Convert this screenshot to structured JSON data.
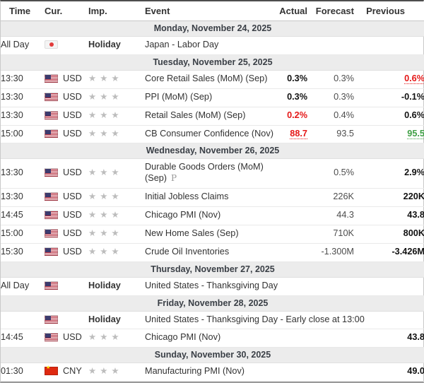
{
  "labels": {
    "preliminary_marker": "P"
  },
  "colors": {
    "negative_red": "#e51717",
    "positive_green": "#3fa045",
    "star_gray": "#bdbdbd",
    "day_header_bg": "#ececec"
  },
  "table": {
    "columns": [
      "Time",
      "Cur.",
      "Imp.",
      "Event",
      "Actual",
      "Forecast",
      "Previous"
    ],
    "sections": [
      {
        "date": "Monday, November 24, 2025",
        "rows": [
          {
            "time": "All Day",
            "flag": "JP",
            "currency": "",
            "holiday": "Holiday",
            "event": "Japan - Labor Day"
          }
        ]
      },
      {
        "date": "Tuesday, November 25, 2025",
        "rows": [
          {
            "time": "13:30",
            "flag": "US",
            "currency": "USD",
            "stars": 3,
            "event": "Core Retail Sales (MoM) (Sep)",
            "actual": {
              "text": "0.3%",
              "style": "bold"
            },
            "forecast": "0.3%",
            "previous": {
              "text": "0.6%",
              "style": "red-underline"
            }
          },
          {
            "time": "13:30",
            "flag": "US",
            "currency": "USD",
            "stars": 3,
            "event": "PPI (MoM) (Sep)",
            "actual": {
              "text": "0.3%",
              "style": "bold"
            },
            "forecast": "0.3%",
            "previous": {
              "text": "-0.1%",
              "style": "bold"
            }
          },
          {
            "time": "13:30",
            "flag": "US",
            "currency": "USD",
            "stars": 3,
            "event": "Retail Sales (MoM) (Sep)",
            "actual": {
              "text": "0.2%",
              "style": "red"
            },
            "forecast": "0.4%",
            "previous": {
              "text": "0.6%",
              "style": "bold"
            }
          },
          {
            "time": "15:00",
            "flag": "US",
            "currency": "USD",
            "stars": 3,
            "event": "CB Consumer Confidence (Nov)",
            "actual": {
              "text": "88.7",
              "style": "red-underline"
            },
            "forecast": "93.5",
            "previous": {
              "text": "95.5",
              "style": "green-underline"
            }
          }
        ]
      },
      {
        "date": "Wednesday, November 26, 2025",
        "rows": [
          {
            "time": "13:30",
            "flag": "US",
            "currency": "USD",
            "stars": 3,
            "event": "Durable Goods Orders (MoM)",
            "event_line2": "(Sep)",
            "preliminary": true,
            "forecast": "0.5%",
            "previous": {
              "text": "2.9%",
              "style": "bold"
            }
          },
          {
            "time": "13:30",
            "flag": "US",
            "currency": "USD",
            "stars": 3,
            "event": "Initial Jobless Claims",
            "forecast": "226K",
            "previous": {
              "text": "220K",
              "style": "bold"
            }
          },
          {
            "time": "14:45",
            "flag": "US",
            "currency": "USD",
            "stars": 3,
            "event": "Chicago PMI (Nov)",
            "forecast": "44.3",
            "previous": {
              "text": "43.8",
              "style": "bold"
            }
          },
          {
            "time": "15:00",
            "flag": "US",
            "currency": "USD",
            "stars": 3,
            "event": "New Home Sales (Sep)",
            "forecast": "710K",
            "previous": {
              "text": "800K",
              "style": "bold"
            }
          },
          {
            "time": "15:30",
            "flag": "US",
            "currency": "USD",
            "stars": 3,
            "event": "Crude Oil Inventories",
            "forecast": "-1.300M",
            "previous": {
              "text": "-3.426M",
              "style": "bold"
            }
          }
        ]
      },
      {
        "date": "Thursday, November 27, 2025",
        "rows": [
          {
            "time": "All Day",
            "flag": "US",
            "currency": "",
            "holiday": "Holiday",
            "event": "United States - Thanksgiving Day"
          }
        ]
      },
      {
        "date": "Friday, November 28, 2025",
        "rows": [
          {
            "time": "",
            "flag": "US",
            "currency": "",
            "holiday": "Holiday",
            "event": "United States - Thanksgiving Day - Early close at 13:00"
          },
          {
            "time": "14:45",
            "flag": "US",
            "currency": "USD",
            "stars": 3,
            "event": "Chicago PMI (Nov)",
            "previous": {
              "text": "43.8",
              "style": "bold"
            }
          }
        ]
      },
      {
        "date": "Sunday, November 30, 2025",
        "rows": [
          {
            "time": "01:30",
            "flag": "CN",
            "currency": "CNY",
            "stars": 3,
            "event": "Manufacturing PMI (Nov)",
            "previous": {
              "text": "49.0",
              "style": "bold"
            }
          }
        ]
      }
    ]
  }
}
